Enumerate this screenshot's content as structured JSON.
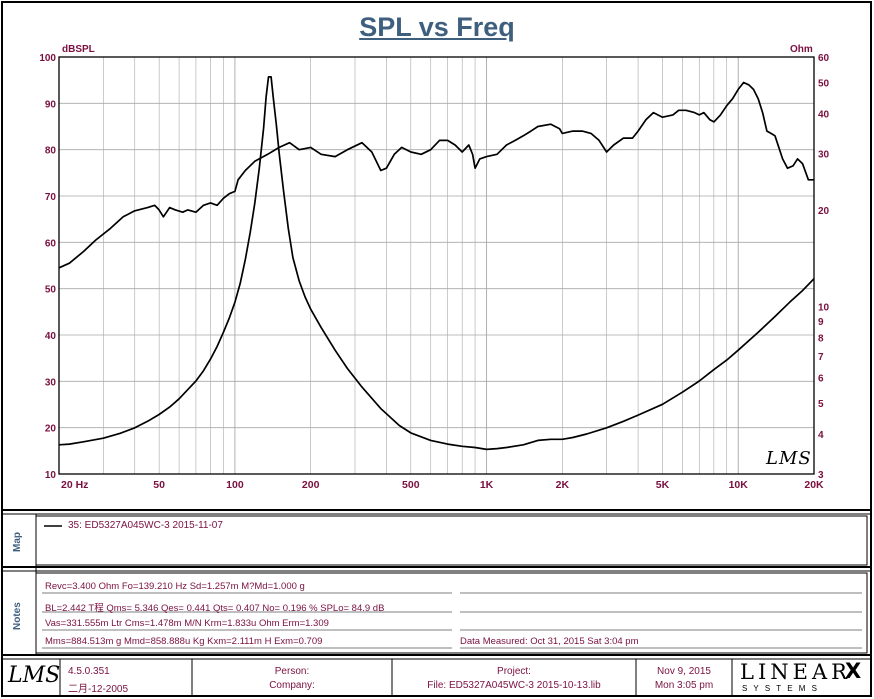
{
  "chart_data": {
    "type": "line",
    "title": "SPL vs Freq",
    "xscale": "log",
    "xlim": [
      20,
      20000
    ],
    "y_left": {
      "label": "dBSPL",
      "lim": [
        10,
        100
      ],
      "ticks": [
        10,
        20,
        30,
        40,
        50,
        60,
        70,
        80,
        90,
        100
      ]
    },
    "y_right": {
      "label": "Ohm",
      "scale": "log",
      "lim": [
        3,
        60
      ],
      "ticks": [
        3,
        4,
        5,
        6,
        7,
        8,
        9,
        10,
        20,
        30,
        40,
        50,
        60
      ]
    },
    "x_ticks": [
      {
        "v": 20,
        "t": "20  Hz"
      },
      {
        "v": 50,
        "t": "50"
      },
      {
        "v": 100,
        "t": "100"
      },
      {
        "v": 200,
        "t": "200"
      },
      {
        "v": 500,
        "t": "500"
      },
      {
        "v": 1000,
        "t": "1K"
      },
      {
        "v": 2000,
        "t": "2K"
      },
      {
        "v": 5000,
        "t": "5K"
      },
      {
        "v": 10000,
        "t": "10K"
      },
      {
        "v": 20000,
        "t": "20K"
      }
    ],
    "grid": true,
    "series": [
      {
        "axis": "left",
        "values": [
          [
            20,
            54.5
          ],
          [
            22,
            55.5
          ],
          [
            25,
            58
          ],
          [
            28,
            60.5
          ],
          [
            32,
            63
          ],
          [
            36,
            65.5
          ],
          [
            40,
            66.8
          ],
          [
            45,
            67.5
          ],
          [
            48,
            68
          ],
          [
            50,
            67
          ],
          [
            52,
            65.5
          ],
          [
            55,
            67.5
          ],
          [
            58,
            67
          ],
          [
            62,
            66.5
          ],
          [
            65,
            67
          ],
          [
            70,
            66.5
          ],
          [
            75,
            68
          ],
          [
            80,
            68.5
          ],
          [
            85,
            68
          ],
          [
            90,
            69.5
          ],
          [
            95,
            70.5
          ],
          [
            100,
            71
          ],
          [
            103,
            73.5
          ],
          [
            110,
            75.5
          ],
          [
            120,
            77.5
          ],
          [
            135,
            79
          ],
          [
            150,
            80.5
          ],
          [
            165,
            81.5
          ],
          [
            180,
            80
          ],
          [
            200,
            80.5
          ],
          [
            220,
            79
          ],
          [
            250,
            78.5
          ],
          [
            280,
            80
          ],
          [
            320,
            81.5
          ],
          [
            350,
            79.5
          ],
          [
            380,
            75.5
          ],
          [
            400,
            76
          ],
          [
            430,
            79
          ],
          [
            460,
            80.5
          ],
          [
            500,
            79.5
          ],
          [
            550,
            79
          ],
          [
            600,
            80
          ],
          [
            650,
            82
          ],
          [
            700,
            82
          ],
          [
            750,
            81
          ],
          [
            800,
            79.5
          ],
          [
            850,
            81
          ],
          [
            880,
            79
          ],
          [
            900,
            76
          ],
          [
            940,
            78
          ],
          [
            1000,
            78.5
          ],
          [
            1100,
            79
          ],
          [
            1200,
            81
          ],
          [
            1300,
            82
          ],
          [
            1400,
            83
          ],
          [
            1500,
            84
          ],
          [
            1600,
            85
          ],
          [
            1800,
            85.5
          ],
          [
            1950,
            84.5
          ],
          [
            2000,
            83.5
          ],
          [
            2200,
            84
          ],
          [
            2400,
            84
          ],
          [
            2600,
            83.5
          ],
          [
            2800,
            82
          ],
          [
            3000,
            79.5
          ],
          [
            3200,
            81
          ],
          [
            3500,
            82.5
          ],
          [
            3800,
            82.5
          ],
          [
            4000,
            84
          ],
          [
            4300,
            86.5
          ],
          [
            4600,
            88
          ],
          [
            5000,
            87
          ],
          [
            5500,
            87.5
          ],
          [
            5800,
            88.5
          ],
          [
            6200,
            88.5
          ],
          [
            6700,
            88
          ],
          [
            7000,
            87.5
          ],
          [
            7300,
            88
          ],
          [
            7700,
            86.5
          ],
          [
            8000,
            86
          ],
          [
            8500,
            87.5
          ],
          [
            9000,
            89.5
          ],
          [
            9500,
            91
          ],
          [
            10000,
            93
          ],
          [
            10500,
            94.5
          ],
          [
            11000,
            94
          ],
          [
            11500,
            93
          ],
          [
            12000,
            91
          ],
          [
            12500,
            88
          ],
          [
            13000,
            84
          ],
          [
            13500,
            83.5
          ],
          [
            14000,
            83
          ],
          [
            15000,
            78
          ],
          [
            15700,
            76
          ],
          [
            16500,
            76.5
          ],
          [
            17200,
            78
          ],
          [
            18000,
            77
          ],
          [
            19000,
            73.5
          ],
          [
            20000,
            73.5
          ]
        ]
      },
      {
        "axis": "right",
        "values": [
          [
            20,
            3.7
          ],
          [
            22,
            3.72
          ],
          [
            25,
            3.78
          ],
          [
            30,
            3.88
          ],
          [
            35,
            4.02
          ],
          [
            40,
            4.18
          ],
          [
            45,
            4.38
          ],
          [
            50,
            4.6
          ],
          [
            55,
            4.85
          ],
          [
            60,
            5.15
          ],
          [
            65,
            5.5
          ],
          [
            70,
            5.85
          ],
          [
            75,
            6.3
          ],
          [
            80,
            6.85
          ],
          [
            85,
            7.5
          ],
          [
            90,
            8.3
          ],
          [
            95,
            9.2
          ],
          [
            100,
            10.3
          ],
          [
            105,
            11.8
          ],
          [
            110,
            14
          ],
          [
            115,
            17
          ],
          [
            120,
            21
          ],
          [
            125,
            27
          ],
          [
            130,
            36
          ],
          [
            133,
            45
          ],
          [
            136,
            52
          ],
          [
            139.2,
            52
          ],
          [
            142,
            45
          ],
          [
            146,
            37
          ],
          [
            150,
            30
          ],
          [
            156,
            23
          ],
          [
            163,
            17.5
          ],
          [
            170,
            14.2
          ],
          [
            180,
            12
          ],
          [
            190,
            10.7
          ],
          [
            200,
            9.8
          ],
          [
            220,
            8.6
          ],
          [
            250,
            7.3
          ],
          [
            280,
            6.4
          ],
          [
            320,
            5.6
          ],
          [
            380,
            4.8
          ],
          [
            450,
            4.25
          ],
          [
            500,
            4.03
          ],
          [
            600,
            3.82
          ],
          [
            700,
            3.72
          ],
          [
            800,
            3.66
          ],
          [
            900,
            3.63
          ],
          [
            1000,
            3.58
          ],
          [
            1100,
            3.6
          ],
          [
            1200,
            3.63
          ],
          [
            1400,
            3.7
          ],
          [
            1600,
            3.82
          ],
          [
            1800,
            3.85
          ],
          [
            2000,
            3.85
          ],
          [
            2200,
            3.9
          ],
          [
            2500,
            4.0
          ],
          [
            3000,
            4.18
          ],
          [
            3500,
            4.38
          ],
          [
            4000,
            4.58
          ],
          [
            5000,
            4.95
          ],
          [
            6000,
            5.4
          ],
          [
            7000,
            5.85
          ],
          [
            8000,
            6.35
          ],
          [
            9000,
            6.8
          ],
          [
            10000,
            7.3
          ],
          [
            12000,
            8.3
          ],
          [
            14000,
            9.3
          ],
          [
            16000,
            10.3
          ],
          [
            18000,
            11.2
          ],
          [
            20000,
            12.2
          ]
        ]
      }
    ],
    "annotations": [
      "LMS"
    ]
  },
  "legend": {
    "entry": "35: ED5327A045WC-3   2015-11-07"
  },
  "panels": {
    "map_label": "Map",
    "notes_label": "Notes"
  },
  "notes": {
    "line1": "Revc=3.400 Ohm  Fo=139.210 Hz  Sd=1.257m M?Md=1.000 g",
    "line2": "BL=2.442 T程  Qms= 5.346  Qes= 0.441  Qts= 0.407  No= 0.196 %  SPLo= 84.9 dB",
    "line3": "Vas=331.555m Ltr  Cms=1.478m M/N  Krm=1.833u Ohm  Erm=1.309",
    "line4": "Mms=884.513m g  Mmd=858.888u Kg  Kxm=2.111m H  Exm=0.709",
    "measured": "Data Measured: Oct 31, 2015   Sat  3:04 pm"
  },
  "footer": {
    "logo": "LMS",
    "version": "4.5.0.351",
    "build_date": "二月-12-2005",
    "person_label": "Person:",
    "company_label": "Company:",
    "project_label": "Project:",
    "file_label": "File: ED5327A045WC-3  2015-10-13.lib",
    "date": "Nov  9, 2015",
    "time": "Mon  3:05 pm",
    "brand_name": "LINEAR",
    "brand_x": "X",
    "brand_sub": "S  Y  S  T  E  M  S"
  },
  "colors": {
    "title": "#3f5f7f",
    "labels": "#7a1040",
    "grid": "#a8a8a8",
    "line": "#000000"
  }
}
